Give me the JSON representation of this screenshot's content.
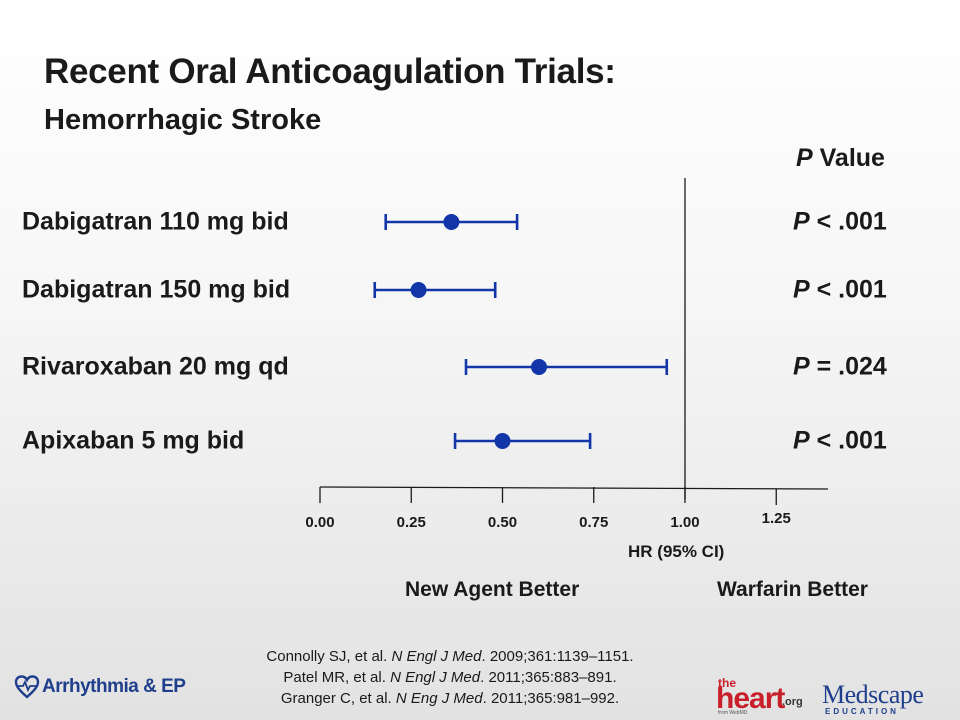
{
  "slide": {
    "title": "Recent Oral Anticoagulation Trials:",
    "subtitle": "Hemorrhagic Stroke",
    "pvalue_header": {
      "italic": "P",
      "rest": " Value"
    }
  },
  "chart_data": {
    "type": "forest",
    "xlabel": "HR (95% CI)",
    "xlim": [
      0,
      1.35
    ],
    "ticks": [
      0,
      0.25,
      0.5,
      0.75,
      1.0,
      1.25
    ],
    "tick_labels": [
      "0.00",
      "0.25",
      "0.50",
      "0.75",
      "1.00",
      "1.25"
    ],
    "reference_line": 1.0,
    "direction_labels": {
      "left": "New Agent Better",
      "right": "Warfarin Better"
    },
    "color": "#1236a8",
    "rows": [
      {
        "label": "Dabigatran 110 mg  bid",
        "hr": 0.36,
        "ci": [
          0.18,
          0.54
        ],
        "p_italic": "P",
        "p_rest": " < .001"
      },
      {
        "label": "Dabigatran 150 mg bid",
        "hr": 0.27,
        "ci": [
          0.15,
          0.48
        ],
        "p_italic": "P",
        "p_rest": " < .001"
      },
      {
        "label": "Rivaroxaban 20 mg qd",
        "hr": 0.6,
        "ci": [
          0.4,
          0.95
        ],
        "p_italic": "P",
        "p_rest": " = .024"
      },
      {
        "label": "Apixaban 5 mg  bid",
        "hr": 0.5,
        "ci": [
          0.37,
          0.74
        ],
        "p_italic": "P",
        "p_rest": " < .001"
      }
    ]
  },
  "references": [
    {
      "pre": "Connolly SJ, et al. ",
      "journal": "N Engl J Med",
      "post": ". 2009;361:1139–1151."
    },
    {
      "pre": "Patel MR, et al. ",
      "journal": "N Engl J Med",
      "post": ". 2011;365:883–891."
    },
    {
      "pre": "Granger C, et al. ",
      "journal": "N Eng J Med",
      "post": ". 2011;365:981–992."
    }
  ],
  "logos": {
    "left": "Arrhythmia & EP",
    "heart_the": "the",
    "heart_main": "heart",
    "heart_org": ".org",
    "heart_from": "from WebMD",
    "medscape": "Medscape",
    "medscape_edu": "EDUCATION"
  }
}
